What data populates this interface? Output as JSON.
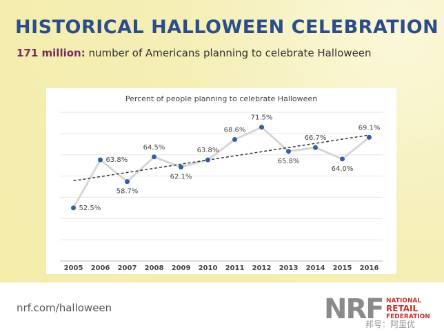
{
  "header": {
    "title": "HISTORICAL HALLOWEEN CELEBRATION",
    "highlight": "171 million:",
    "subtitle": "number of Americans planning to celebrate Halloween"
  },
  "chart_data": {
    "type": "line",
    "title": "Percent of people planning to celebrate Halloween",
    "categories": [
      "2005",
      "2006",
      "2007",
      "2008",
      "2009",
      "2010",
      "2011",
      "2012",
      "2013",
      "2014",
      "2015",
      "2016"
    ],
    "values": [
      52.5,
      63.8,
      58.7,
      64.5,
      62.1,
      63.8,
      68.6,
      71.5,
      65.8,
      66.7,
      64.0,
      69.1
    ],
    "value_labels": [
      "52.5%",
      "63.8%",
      "58.7%",
      "64.5%",
      "62.1%",
      "63.8%",
      "68.6%",
      "71.5%",
      "65.8%",
      "66.7%",
      "64.0%",
      "69.1%"
    ],
    "color": "#2e5fa8",
    "line_color": "#d6d6d6",
    "trendline": true,
    "ylim": [
      40,
      75
    ],
    "yticks": [
      40,
      45,
      50,
      55,
      60,
      65,
      70,
      75
    ],
    "grid": true
  },
  "footer": {
    "url": "nrf.com/halloween",
    "logo": "NRF",
    "logo_lines": [
      "NATIONAL",
      "RETAIL",
      "FEDERATION"
    ],
    "watermark": "邦号：阿里优"
  }
}
